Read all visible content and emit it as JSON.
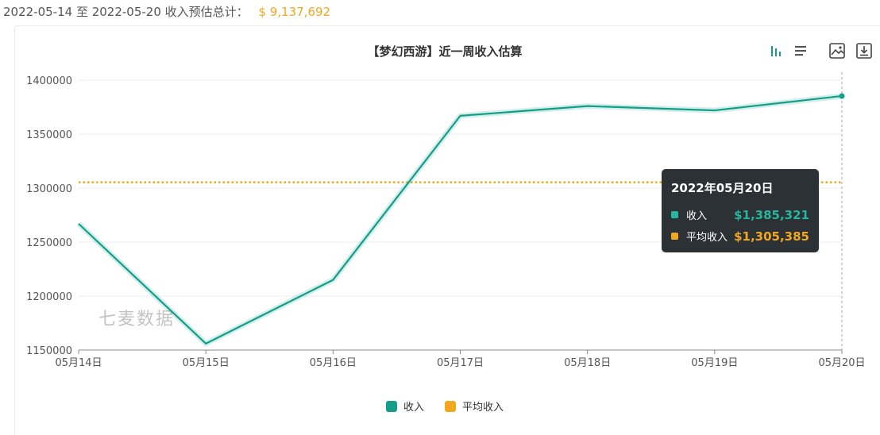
{
  "summary": {
    "range_label": "2022-05-14 至 2022-05-20 收入预估总计：",
    "total": "$ 9,137,692"
  },
  "toolbar": {
    "view_toggle": [
      "bar-chart-icon",
      "list-icon"
    ],
    "actions": [
      "save-image-icon",
      "download-icon"
    ]
  },
  "chart_data": {
    "type": "line",
    "title": "【梦幻西游】近一周收入估算",
    "categories": [
      "05月14日",
      "05月15日",
      "05月16日",
      "05月17日",
      "05月18日",
      "05月19日",
      "05月20日"
    ],
    "series": [
      {
        "name": "收入",
        "color": "#139e8c",
        "values": [
          1267000,
          1156000,
          1215000,
          1367000,
          1376000,
          1372000,
          1385321
        ]
      },
      {
        "name": "平均收入",
        "color": "#f0a81f",
        "style": "dotted",
        "values": [
          1305385,
          1305385,
          1305385,
          1305385,
          1305385,
          1305385,
          1305385
        ]
      }
    ],
    "yticks": [
      "1150000",
      "1200000",
      "1250000",
      "1300000",
      "1350000",
      "1400000"
    ],
    "ylim": [
      1150000,
      1400000
    ],
    "grid": true,
    "legend": "bottom-center"
  },
  "tooltip": {
    "title": "2022年05月20日",
    "rows": [
      {
        "name": "收入",
        "value": "$1,385,321",
        "color": "#26b59e"
      },
      {
        "name": "平均收入",
        "value": "$1,305,385",
        "color": "#f0a81f"
      }
    ]
  },
  "legend": [
    {
      "name": "收入",
      "color": "#139e8c"
    },
    {
      "name": "平均收入",
      "color": "#f0a81f"
    }
  ],
  "watermark": "七麦数据"
}
